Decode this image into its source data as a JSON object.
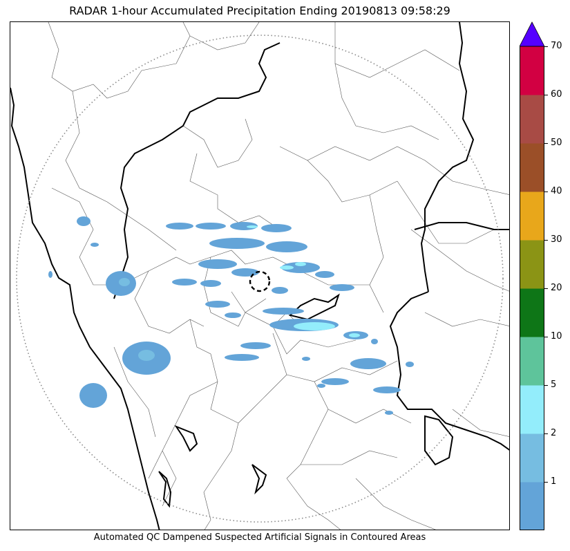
{
  "title": "RADAR 1-hour Accumulated Precipitation Ending 20190813 09:58:29",
  "footer": "Automated QC Dampened Suspected Artificial Signals in Contoured Areas",
  "colorbar": {
    "extend_color": "#5500ff",
    "bins": [
      {
        "color": "#63a4d8"
      },
      {
        "color": "#76bde1"
      },
      {
        "color": "#93edfb"
      },
      {
        "color": "#5ec49b"
      },
      {
        "color": "#0e7617"
      },
      {
        "color": "#8b9415"
      },
      {
        "color": "#e8a71b"
      },
      {
        "color": "#9b4f28"
      },
      {
        "color": "#a84b45"
      },
      {
        "color": "#d20042"
      }
    ],
    "ticks": [
      "1",
      "2",
      "5",
      "10",
      "20",
      "30",
      "40",
      "50",
      "60",
      "70"
    ]
  },
  "map": {
    "range_ring": "dotted",
    "radar_marker": "dashed-circle",
    "colors": {
      "light_precip": "#63a4d8",
      "moderate_precip": "#93edfb",
      "border": "#000000"
    }
  }
}
